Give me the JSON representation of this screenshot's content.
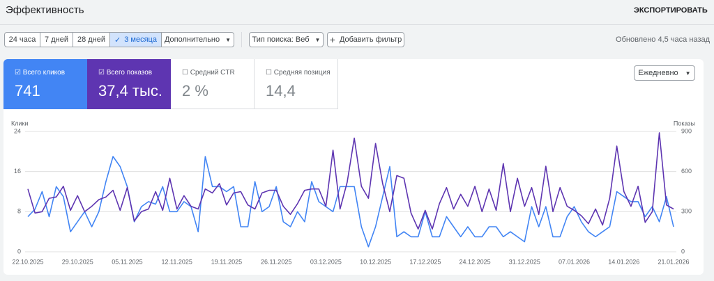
{
  "header": {
    "title": "Эффективность",
    "export": "ЭКСПОРТИРОВАТЬ"
  },
  "ranges": [
    "24 часа",
    "7 дней",
    "28 дней",
    "3 месяца",
    "Дополнительно"
  ],
  "search_type": "Тип поиска: Веб",
  "add_filter": "Добавить фильтр",
  "updated": "Обновлено 4,5 часа назад",
  "cards": [
    {
      "label": "Всего кликов",
      "value": "741"
    },
    {
      "label": "Всего показов",
      "value": "37,4 тыс."
    },
    {
      "label": "Средний CTR",
      "value": "2 %"
    },
    {
      "label": "Средняя позиция",
      "value": "14,4"
    }
  ],
  "granularity": "Ежедневно",
  "chart_data": {
    "type": "line",
    "categories": [
      "22.10.2025",
      null,
      null,
      null,
      null,
      null,
      null,
      "29.10.2025",
      null,
      null,
      null,
      null,
      null,
      null,
      "05.11.2025",
      null,
      null,
      null,
      null,
      null,
      null,
      "12.11.2025",
      null,
      null,
      null,
      null,
      null,
      null,
      "19.11.2025",
      null,
      null,
      null,
      null,
      null,
      null,
      "26.11.2025",
      null,
      null,
      null,
      null,
      null,
      null,
      "03.12.2025",
      null,
      null,
      null,
      null,
      null,
      null,
      "10.12.2025",
      null,
      null,
      null,
      null,
      null,
      null,
      "17.12.2025",
      null,
      null,
      null,
      null,
      null,
      null,
      "24.12.2025",
      null,
      null,
      null,
      null,
      null,
      null,
      "31.12.2025",
      null,
      null,
      null,
      null,
      null,
      null,
      "07.01.2026",
      null,
      null,
      null,
      null,
      null,
      null,
      "14.01.2026",
      null,
      null,
      null,
      null,
      null,
      null,
      "21.01.2026"
    ],
    "series": [
      {
        "name": "Клики",
        "color": "#4285f4",
        "values": [
          7,
          8.5,
          12,
          7,
          13,
          11,
          4,
          6,
          8,
          5,
          8,
          14,
          19,
          17,
          13,
          6,
          9,
          10,
          9.5,
          13,
          8,
          8,
          10,
          9,
          4,
          19,
          13,
          13,
          12,
          13,
          5,
          5,
          14,
          8,
          9,
          13,
          6,
          5,
          8,
          6,
          14,
          10,
          9,
          8,
          13,
          13,
          13,
          5,
          1,
          5,
          11,
          17,
          3,
          4,
          3,
          3,
          8,
          3,
          3,
          7,
          5,
          3,
          5,
          3,
          3,
          5,
          5,
          3,
          4,
          3,
          2,
          9,
          5,
          9,
          3,
          3,
          7,
          9,
          6,
          4,
          3,
          4,
          5,
          12,
          11,
          10,
          10,
          7,
          9,
          6,
          11,
          5
        ]
      },
      {
        "name": "Показы",
        "color": "#5e35b1",
        "axis": "y2",
        "values": [
          470,
          290,
          300,
          400,
          410,
          490,
          310,
          420,
          300,
          340,
          390,
          410,
          460,
          310,
          480,
          230,
          300,
          320,
          450,
          310,
          550,
          320,
          420,
          340,
          320,
          470,
          440,
          510,
          350,
          440,
          450,
          350,
          320,
          440,
          460,
          460,
          340,
          280,
          360,
          460,
          470,
          470,
          340,
          760,
          320,
          520,
          850,
          490,
          400,
          810,
          510,
          300,
          570,
          550,
          290,
          170,
          310,
          170,
          360,
          480,
          320,
          430,
          340,
          490,
          300,
          470,
          310,
          660,
          300,
          550,
          340,
          480,
          280,
          640,
          300,
          480,
          340,
          310,
          270,
          210,
          320,
          200,
          400,
          790,
          450,
          340,
          490,
          220,
          300,
          890,
          350,
          320
        ]
      }
    ],
    "ylim": [
      0,
      24
    ],
    "yticks": [
      0,
      8,
      16,
      24
    ],
    "y2lim": [
      0,
      900
    ],
    "y2ticks": [
      0,
      300,
      600,
      900
    ],
    "grid": true
  }
}
